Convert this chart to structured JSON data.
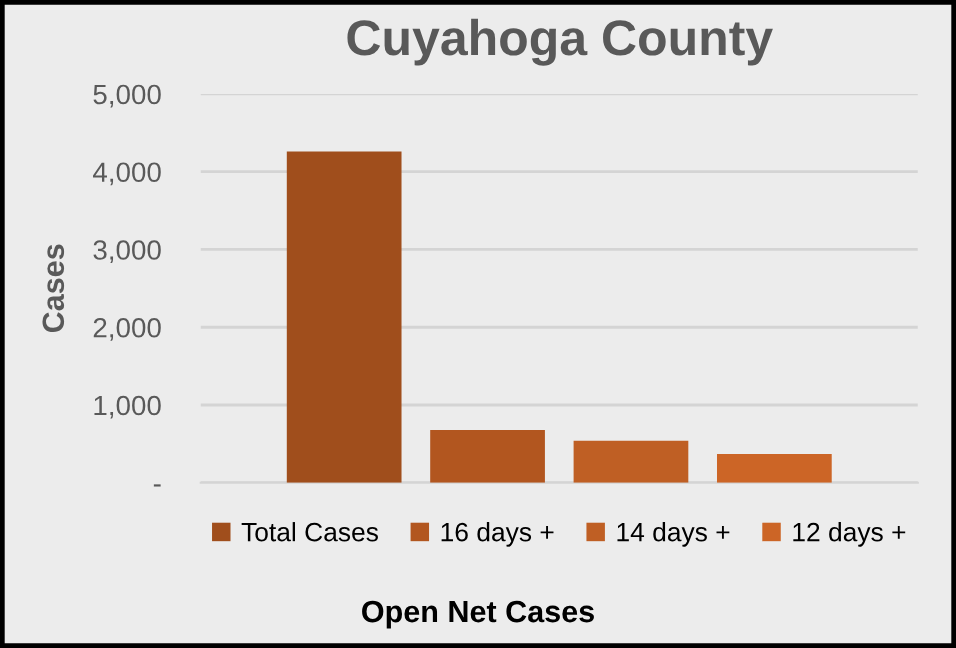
{
  "chart_data": {
    "type": "bar",
    "title": "Cuyahoga County",
    "xlabel": "Open Net Cases",
    "ylabel": "Cases",
    "categories": [
      null
    ],
    "series": [
      {
        "name": "Total Cases",
        "color": "#a04e1c",
        "values": [
          4260
        ]
      },
      {
        "name": "16 days +",
        "color": "#b2561f",
        "values": [
          680
        ]
      },
      {
        "name": "14 days +",
        "color": "#bf5f24",
        "values": [
          540
        ]
      },
      {
        "name": "12 days +",
        "color": "#cc6526",
        "values": [
          370
        ]
      }
    ],
    "ylim": [
      0,
      5000
    ],
    "yticks": [
      {
        "value": 0,
        "label": "-"
      },
      {
        "value": 1000,
        "label": "1,000"
      },
      {
        "value": 2000,
        "label": "2,000"
      },
      {
        "value": 3000,
        "label": "3,000"
      },
      {
        "value": 4000,
        "label": "4,000"
      },
      {
        "value": 5000,
        "label": "5,000"
      }
    ],
    "grid": "y",
    "legend": "bottom"
  }
}
